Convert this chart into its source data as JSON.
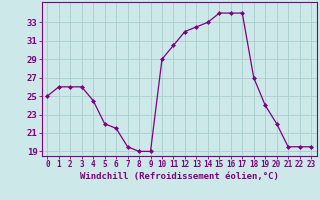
{
  "hours": [
    0,
    1,
    2,
    3,
    4,
    5,
    6,
    7,
    8,
    9,
    10,
    11,
    12,
    13,
    14,
    15,
    16,
    17,
    18,
    19,
    20,
    21,
    22,
    23
  ],
  "temps": [
    25,
    26,
    26,
    26,
    24.5,
    22,
    21.5,
    19.5,
    19,
    19,
    29,
    30.5,
    32,
    32.5,
    33,
    34,
    34,
    34,
    27,
    24,
    22,
    19.5,
    19.5,
    19.5
  ],
  "line_color": "#800080",
  "marker": "D",
  "marker_size": 2,
  "bg_color": "#cce8e8",
  "grid_color": "#aacccc",
  "xlabel": "Windchill (Refroidissement éolien,°C)",
  "xlabel_color": "#800080",
  "xlabel_fontsize": 6.5,
  "ylabel_ticks": [
    19,
    21,
    23,
    25,
    27,
    29,
    31,
    33
  ],
  "ytick_fontsize": 6.5,
  "xtick_fontsize": 5.5,
  "xtick_color": "#800080",
  "ytick_color": "#800080",
  "ylim": [
    18.5,
    35.2
  ],
  "xlim": [
    -0.5,
    23.5
  ],
  "spine_color": "#800080",
  "line_width": 0.9
}
